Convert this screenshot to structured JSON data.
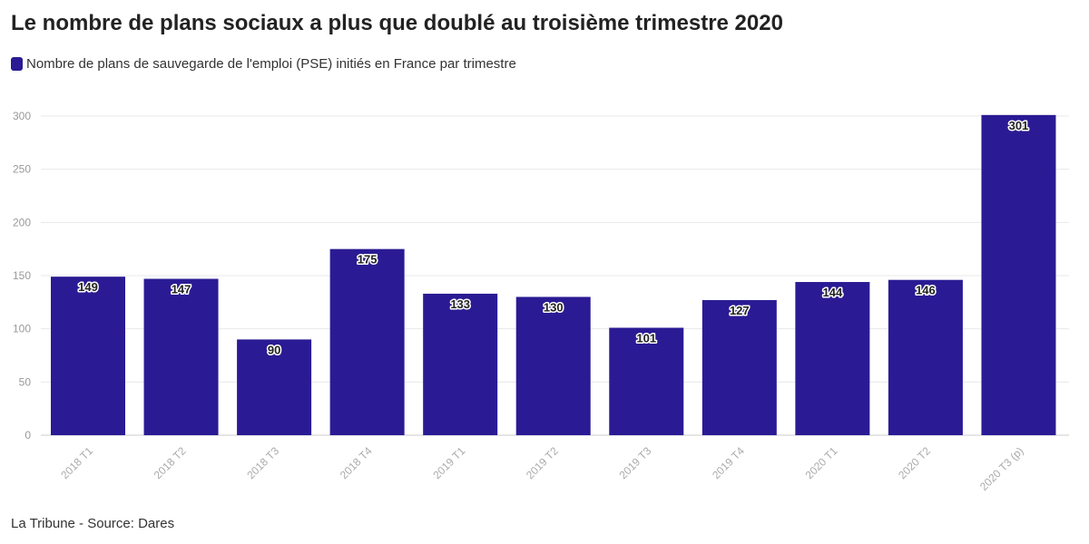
{
  "title": "Le nombre de plans sociaux a plus que doublé au troisième trimestre 2020",
  "footer": "La Tribune - Source: Dares",
  "chart_data": {
    "type": "bar",
    "categories": [
      "2018 T1",
      "2018 T2",
      "2018 T3",
      "2018 T4",
      "2019 T1",
      "2019 T2",
      "2019 T3",
      "2019 T4",
      "2020 T1",
      "2020 T2",
      "2020 T3 (p)"
    ],
    "series": [
      {
        "name": "Nombre de plans de sauvegarde de l'emploi (PSE) initiés en France par trimestre",
        "values": [
          149,
          147,
          90,
          175,
          133,
          130,
          101,
          127,
          144,
          146,
          301
        ],
        "color": "#2a1b94"
      }
    ],
    "ylim": [
      0,
      300
    ],
    "yticks": [
      0,
      50,
      100,
      150,
      200,
      250,
      300
    ],
    "grid": true,
    "legend_position": "top-left",
    "data_labels": true
  }
}
